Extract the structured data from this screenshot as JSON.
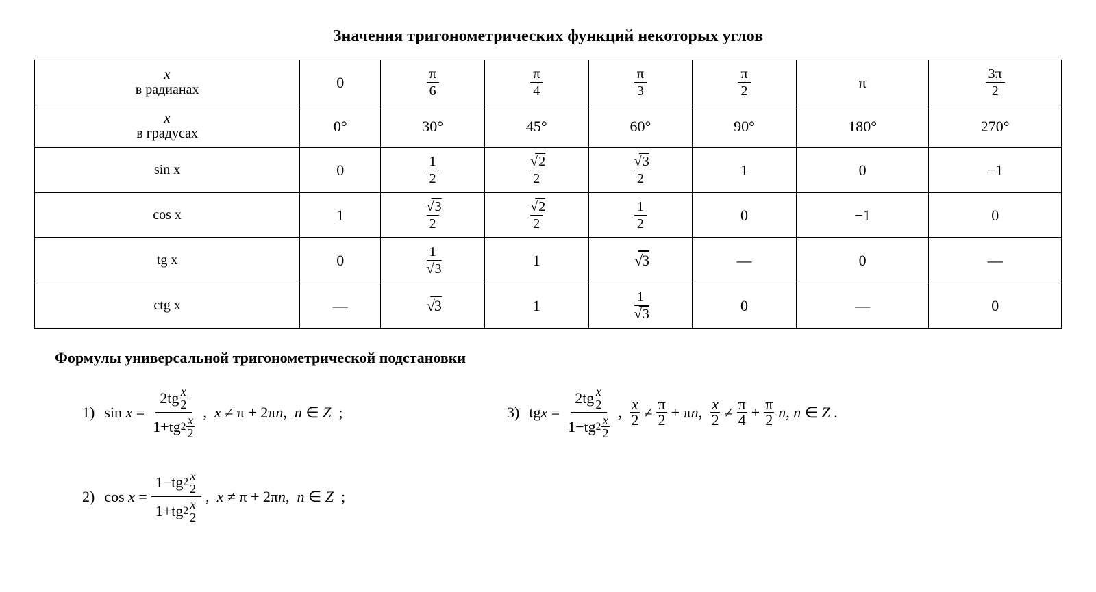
{
  "title": "Значения тригонометрических функций некоторых углов",
  "table": {
    "row_headers": {
      "radians": {
        "var": "x",
        "label": "в радианах"
      },
      "degrees": {
        "var": "x",
        "label": "в градусах"
      },
      "sin": "sin x",
      "cos": "cos x",
      "tg": "tg x",
      "ctg": "ctg x"
    },
    "radians": [
      "0",
      "π/6",
      "π/4",
      "π/3",
      "π/2",
      "π",
      "3π/2"
    ],
    "degrees": [
      "0°",
      "30°",
      "45°",
      "60°",
      "90°",
      "180°",
      "270°"
    ],
    "sin": [
      "0",
      "1/2",
      "√2/2",
      "√3/2",
      "1",
      "0",
      "−1"
    ],
    "cos": [
      "1",
      "√3/2",
      "√2/2",
      "1/2",
      "0",
      "−1",
      "0"
    ],
    "tg": [
      "0",
      "1/√3",
      "1",
      "√3",
      "—",
      "0",
      "—"
    ],
    "ctg": [
      "—",
      "√3",
      "1",
      "1/√3",
      "0",
      "—",
      "0"
    ]
  },
  "subtitle": "Формулы универсальной тригонометрической подстановки",
  "formulas": {
    "f1": {
      "label": "1)",
      "lhs": "sin x =",
      "numerator": "2tg(x/2)",
      "denominator": "1+tg²(x/2)",
      "condition": ",  x ≠ π + 2πn,  n ∈ Z  ;"
    },
    "f2": {
      "label": "2)",
      "lhs": "cos x =",
      "numerator": "1−tg²(x/2)",
      "denominator": "1+tg²(x/2)",
      "condition": ",  x ≠ π + 2πn,  n ∈ Z  ;"
    },
    "f3": {
      "label": "3)",
      "lhs": "tg x =",
      "numerator": "2tg(x/2)",
      "denominator": "1−tg²(x/2)",
      "condition_parts": {
        "p1": ", ",
        "frac1_num": "x",
        "frac1_den": "2",
        "neq1": " ≠ ",
        "frac2_num": "π",
        "frac2_den": "2",
        "plus1": " + πn, ",
        "frac3_num": "x",
        "frac3_den": "2",
        "neq2": " ≠ ",
        "frac4_num": "π",
        "frac4_den": "4",
        "plus2": " + ",
        "frac5_num": "π",
        "frac5_den": "2",
        "tail": " n, n ∈ Z ."
      }
    }
  },
  "style": {
    "background": "#ffffff",
    "text_color": "#000000",
    "border_color": "#000000",
    "title_fontsize": 24,
    "cell_fontsize": 22,
    "formula_fontsize": 22,
    "font_family": "Times New Roman"
  }
}
